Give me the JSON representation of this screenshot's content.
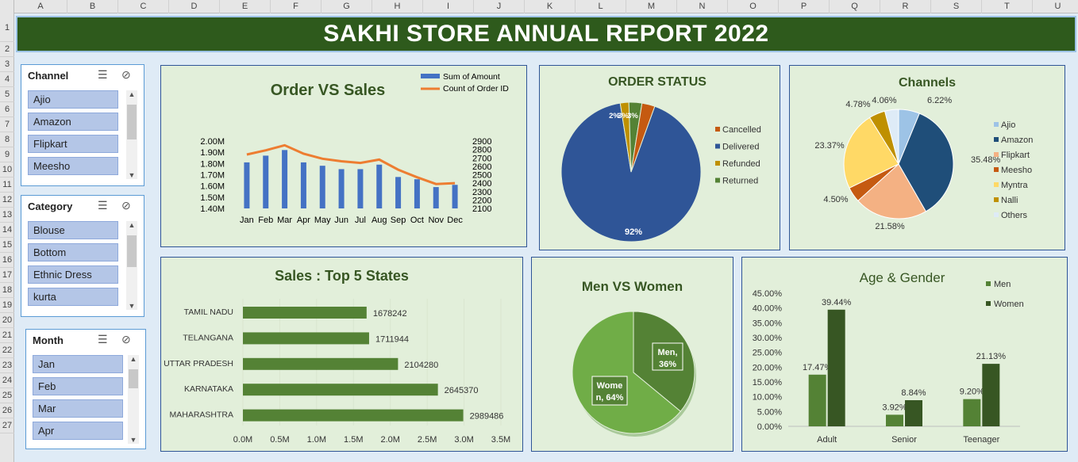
{
  "columns": [
    "A",
    "B",
    "C",
    "D",
    "E",
    "F",
    "G",
    "H",
    "I",
    "J",
    "K",
    "L",
    "M",
    "N",
    "O",
    "P",
    "Q",
    "R",
    "S",
    "T",
    "U"
  ],
  "rows": [
    "1",
    "2",
    "3",
    "4",
    "5",
    "6",
    "7",
    "8",
    "9",
    "10",
    "11",
    "12",
    "13",
    "14",
    "15",
    "16",
    "17",
    "18",
    "19",
    "20",
    "21",
    "22",
    "23",
    "24",
    "25",
    "26",
    "27"
  ],
  "title": "SAKHI STORE ANNUAL REPORT 2022",
  "colors": {
    "dark_green": "#2e5a1c",
    "panel_bg": "#e2efda",
    "bar_blue": "#4472c4",
    "line_orange": "#ed7d31"
  },
  "slicers": {
    "channel": {
      "header": "Channel",
      "items": [
        "Ajio",
        "Amazon",
        "Flipkart",
        "Meesho"
      ]
    },
    "category": {
      "header": "Category",
      "items": [
        "Blouse",
        "Bottom",
        "Ethnic Dress",
        "kurta"
      ]
    },
    "month": {
      "header": "Month",
      "items": [
        "Jan",
        "Feb",
        "Mar",
        "Apr"
      ]
    }
  },
  "chart_data": [
    {
      "id": "order_vs_sales",
      "type": "bar",
      "title": "Order VS Sales",
      "categories": [
        "Jan",
        "Feb",
        "Mar",
        "Apr",
        "May",
        "Jun",
        "Jul",
        "Aug",
        "Sep",
        "Oct",
        "Nov",
        "Dec"
      ],
      "series": [
        {
          "name": "Sum of Amount",
          "type": "bar",
          "axis": "left",
          "values": [
            1.81,
            1.87,
            1.92,
            1.81,
            1.78,
            1.75,
            1.75,
            1.79,
            1.68,
            1.66,
            1.59,
            1.61
          ]
        },
        {
          "name": "Count of Order ID",
          "type": "line",
          "axis": "right",
          "values": [
            2740,
            2790,
            2850,
            2750,
            2690,
            2660,
            2640,
            2680,
            2560,
            2470,
            2390,
            2400
          ]
        }
      ],
      "y_left_ticks": [
        "1.40M",
        "1.50M",
        "1.60M",
        "1.70M",
        "1.80M",
        "1.90M",
        "2.00M"
      ],
      "y_left_range": [
        1.4,
        2.0
      ],
      "y_right_ticks": [
        "2100",
        "2200",
        "2300",
        "2400",
        "2500",
        "2600",
        "2700",
        "2800",
        "2900"
      ],
      "y_right_range": [
        2100,
        2900
      ]
    },
    {
      "id": "order_status",
      "type": "pie",
      "title": "ORDER STATUS",
      "slices": [
        {
          "label": "Cancelled",
          "value": 3,
          "color": "#c55a11",
          "text": "3%"
        },
        {
          "label": "Delivered",
          "value": 92,
          "color": "#2f5597",
          "text": "92%"
        },
        {
          "label": "Refunded",
          "value": 2,
          "color": "#bf9000",
          "text": "2%"
        },
        {
          "label": "Returned",
          "value": 3,
          "color": "#548235",
          "text": "3%"
        }
      ]
    },
    {
      "id": "channels",
      "type": "pie",
      "title": "Channels",
      "slices": [
        {
          "label": "Ajio",
          "value": 6.22,
          "color": "#9dc3e6",
          "text": "6.22%"
        },
        {
          "label": "Amazon",
          "value": 35.48,
          "color": "#1f4e79",
          "text": "35.48%"
        },
        {
          "label": "Flipkart",
          "value": 21.58,
          "color": "#f4b183",
          "text": "21.58%"
        },
        {
          "label": "Meesho",
          "value": 4.5,
          "color": "#c55a11",
          "text": "4.50%"
        },
        {
          "label": "Myntra",
          "value": 23.37,
          "color": "#ffd966",
          "text": "23.37%"
        },
        {
          "label": "Nalli",
          "value": 4.78,
          "color": "#bf9000",
          "text": "4.78%"
        },
        {
          "label": "Others",
          "value": 4.06,
          "color": "#deebf7",
          "text": "4.06%"
        }
      ]
    },
    {
      "id": "top5_states",
      "type": "bar",
      "orientation": "horizontal",
      "title": "Sales : Top 5 States",
      "categories": [
        "TAMIL NADU",
        "TELANGANA",
        "UTTAR PRADESH",
        "KARNATAKA",
        "MAHARASHTRA"
      ],
      "values": [
        1678242,
        1711944,
        2104280,
        2645370,
        2989486
      ],
      "x_ticks": [
        "0.0M",
        "0.5M",
        "1.0M",
        "1.5M",
        "2.0M",
        "2.5M",
        "3.0M",
        "3.5M"
      ],
      "xlim": [
        0,
        3500000
      ]
    },
    {
      "id": "men_vs_women",
      "type": "pie",
      "title": "Men VS Women",
      "slices": [
        {
          "label": "Men",
          "value": 36,
          "color": "#548235",
          "text": "Men,\n36%"
        },
        {
          "label": "Women",
          "value": 64,
          "color": "#70ad47",
          "text": "Wome\nn, 64%"
        }
      ]
    },
    {
      "id": "age_gender",
      "type": "bar",
      "title": "Age & Gender",
      "categories": [
        "Adult",
        "Senior",
        "Teenager"
      ],
      "series": [
        {
          "name": "Men",
          "values": [
            17.47,
            3.92,
            9.2
          ],
          "color": "#548235",
          "labels": [
            "17.47%",
            "3.92%",
            "9.20%"
          ]
        },
        {
          "name": "Women",
          "values": [
            39.44,
            8.84,
            21.13
          ],
          "color": "#375623",
          "labels": [
            "39.44%",
            "8.84%",
            "21.13%"
          ]
        }
      ],
      "y_ticks": [
        "0.00%",
        "5.00%",
        "10.00%",
        "15.00%",
        "20.00%",
        "25.00%",
        "30.00%",
        "35.00%",
        "40.00%",
        "45.00%"
      ],
      "ylim": [
        0,
        45
      ]
    }
  ]
}
